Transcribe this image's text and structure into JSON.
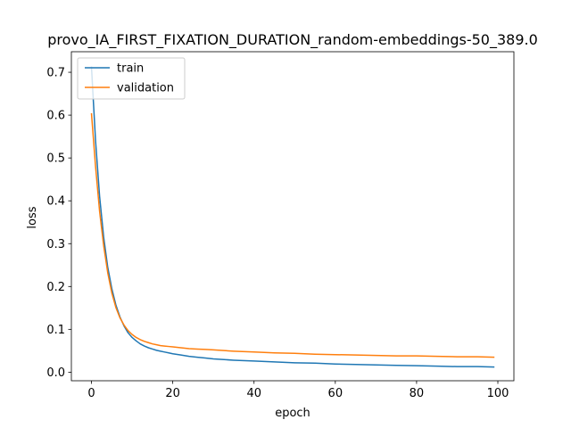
{
  "chart_data": {
    "type": "line",
    "title": "provo_IA_FIRST_FIXATION_DURATION_random-embeddings-50_389.0",
    "xlabel": "epoch",
    "ylabel": "loss",
    "xlim": [
      -4.95,
      103.95
    ],
    "ylim": [
      -0.02,
      0.748
    ],
    "xticks": [
      0,
      20,
      40,
      60,
      80,
      100
    ],
    "yticks": [
      0.0,
      0.1,
      0.2,
      0.3,
      0.4,
      0.5,
      0.6,
      0.7
    ],
    "xtick_labels": [
      "0",
      "20",
      "40",
      "60",
      "80",
      "100"
    ],
    "ytick_labels": [
      "0.0",
      "0.1",
      "0.2",
      "0.3",
      "0.4",
      "0.5",
      "0.6",
      "0.7"
    ],
    "legend_position": "upper-left",
    "grid": false,
    "series": [
      {
        "name": "train",
        "color": "#1f77b4",
        "x": [
          0,
          1,
          2,
          3,
          4,
          5,
          6,
          7,
          8,
          9,
          10,
          11,
          12,
          13,
          14,
          15,
          16,
          17,
          18,
          19,
          20,
          22,
          24,
          26,
          28,
          30,
          35,
          40,
          45,
          50,
          55,
          60,
          65,
          70,
          75,
          80,
          85,
          90,
          95,
          99
        ],
        "y": [
          0.712,
          0.54,
          0.41,
          0.315,
          0.245,
          0.195,
          0.157,
          0.129,
          0.108,
          0.092,
          0.081,
          0.073,
          0.066,
          0.061,
          0.057,
          0.054,
          0.051,
          0.049,
          0.047,
          0.045,
          0.043,
          0.04,
          0.037,
          0.035,
          0.033,
          0.031,
          0.028,
          0.026,
          0.024,
          0.022,
          0.021,
          0.019,
          0.018,
          0.017,
          0.016,
          0.015,
          0.014,
          0.013,
          0.013,
          0.012
        ]
      },
      {
        "name": "validation",
        "color": "#ff7f0e",
        "x": [
          0,
          1,
          2,
          3,
          4,
          5,
          6,
          7,
          8,
          9,
          10,
          11,
          12,
          13,
          14,
          15,
          16,
          17,
          18,
          19,
          20,
          22,
          24,
          26,
          28,
          30,
          35,
          40,
          45,
          50,
          55,
          60,
          65,
          70,
          75,
          80,
          85,
          90,
          95,
          99
        ],
        "y": [
          0.603,
          0.48,
          0.375,
          0.295,
          0.232,
          0.185,
          0.151,
          0.127,
          0.11,
          0.097,
          0.088,
          0.081,
          0.076,
          0.072,
          0.069,
          0.066,
          0.064,
          0.062,
          0.061,
          0.06,
          0.059,
          0.057,
          0.055,
          0.054,
          0.053,
          0.052,
          0.049,
          0.047,
          0.045,
          0.044,
          0.042,
          0.041,
          0.04,
          0.039,
          0.038,
          0.038,
          0.037,
          0.036,
          0.036,
          0.035
        ]
      }
    ]
  }
}
